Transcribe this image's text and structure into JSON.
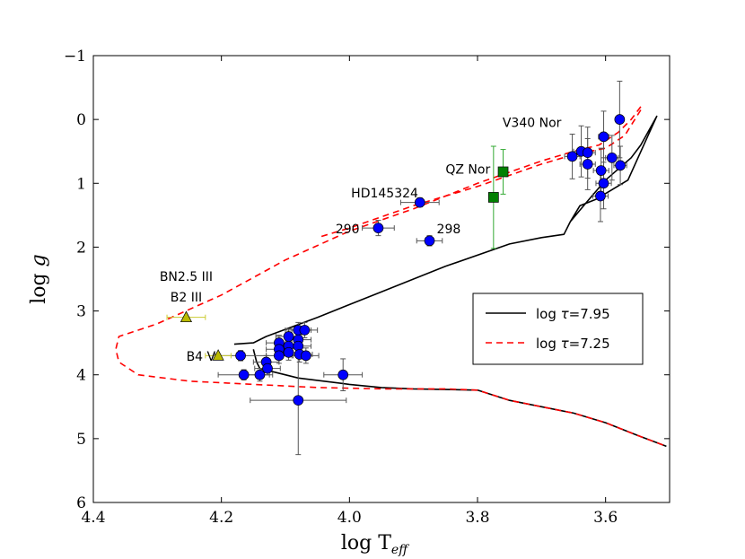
{
  "chart_data": {
    "type": "scatter",
    "xlabel_main": "log T",
    "xlabel_sub": "eff",
    "ylabel_main": "log",
    "ylabel_var": "g",
    "xlim": [
      4.4,
      3.5
    ],
    "ylim": [
      6,
      -1
    ],
    "x_ticks": [
      4.4,
      4.2,
      4.0,
      3.8,
      3.6
    ],
    "x_tick_labels": [
      "4.4",
      "4.2",
      "4.0",
      "3.8",
      "3.6"
    ],
    "y_ticks": [
      -1,
      0,
      1,
      2,
      3,
      4,
      5,
      6
    ],
    "y_tick_labels": [
      "−1",
      "0",
      "1",
      "2",
      "3",
      "4",
      "5",
      "6"
    ],
    "legend": {
      "position": "right",
      "entries": [
        {
          "label_pre": "log ",
          "label_sym": "τ",
          "label_post": "=7.95",
          "style": "solid",
          "color": "#000000"
        },
        {
          "label_pre": "log ",
          "label_sym": "τ",
          "label_post": "=7.25",
          "style": "dashed",
          "color": "#ff0000"
        }
      ]
    },
    "annotations": [
      {
        "text": "V340 Nor",
        "x": 3.715,
        "y": 0.12
      },
      {
        "text": "QZ Nor",
        "x": 3.815,
        "y": 0.85
      },
      {
        "text": "HD145324",
        "x": 3.945,
        "y": 1.22
      },
      {
        "text": "290",
        "x": 4.003,
        "y": 1.78
      },
      {
        "text": "298",
        "x": 3.845,
        "y": 1.78
      },
      {
        "text": "BN2.5 III",
        "x": 4.255,
        "y": 2.53
      },
      {
        "text": "B2 III",
        "x": 4.255,
        "y": 2.85
      },
      {
        "text": "B4 V",
        "x": 4.232,
        "y": 3.78
      }
    ],
    "series": [
      {
        "name": "blue circles",
        "marker": "circle",
        "color": "#0000ff",
        "errcolor": "#555555",
        "points": [
          {
            "x": 3.89,
            "y": 1.3,
            "xerr": 0.03,
            "yerr": 0.07
          },
          {
            "x": 3.955,
            "y": 1.7,
            "xerr": 0.025,
            "yerr": 0.12
          },
          {
            "x": 3.875,
            "y": 1.9,
            "xerr": 0.02,
            "yerr": 0.08
          },
          {
            "x": 3.578,
            "y": 0.0,
            "xerr": 0.006,
            "yerr": 0.6
          },
          {
            "x": 3.603,
            "y": 0.27,
            "xerr": 0.008,
            "yerr": 0.4
          },
          {
            "x": 3.638,
            "y": 0.5,
            "xerr": 0.012,
            "yerr": 0.4
          },
          {
            "x": 3.628,
            "y": 0.52,
            "xerr": 0.012,
            "yerr": 0.4
          },
          {
            "x": 3.652,
            "y": 0.58,
            "xerr": 0.012,
            "yerr": 0.35
          },
          {
            "x": 3.59,
            "y": 0.6,
            "xerr": 0.01,
            "yerr": 0.35
          },
          {
            "x": 3.628,
            "y": 0.7,
            "xerr": 0.012,
            "yerr": 0.4
          },
          {
            "x": 3.577,
            "y": 0.72,
            "xerr": 0.01,
            "yerr": 0.3
          },
          {
            "x": 3.607,
            "y": 0.8,
            "xerr": 0.012,
            "yerr": 0.35
          },
          {
            "x": 3.603,
            "y": 1.0,
            "xerr": 0.012,
            "yerr": 0.4
          },
          {
            "x": 3.608,
            "y": 1.2,
            "xerr": 0.012,
            "yerr": 0.4
          },
          {
            "x": 4.17,
            "y": 3.7,
            "xerr": 0.04,
            "yerr": 0.08
          },
          {
            "x": 4.165,
            "y": 4.0,
            "xerr": 0.04,
            "yerr": 0.08
          },
          {
            "x": 4.13,
            "y": 3.8,
            "xerr": 0.02,
            "yerr": 0.1
          },
          {
            "x": 4.128,
            "y": 3.9,
            "xerr": 0.02,
            "yerr": 0.1
          },
          {
            "x": 4.14,
            "y": 4.0,
            "xerr": 0.02,
            "yerr": 0.1
          },
          {
            "x": 4.11,
            "y": 3.5,
            "xerr": 0.02,
            "yerr": 0.12
          },
          {
            "x": 4.11,
            "y": 3.6,
            "xerr": 0.02,
            "yerr": 0.12
          },
          {
            "x": 4.11,
            "y": 3.7,
            "xerr": 0.02,
            "yerr": 0.12
          },
          {
            "x": 4.095,
            "y": 3.4,
            "xerr": 0.02,
            "yerr": 0.12
          },
          {
            "x": 4.095,
            "y": 3.55,
            "xerr": 0.02,
            "yerr": 0.12
          },
          {
            "x": 4.095,
            "y": 3.65,
            "xerr": 0.02,
            "yerr": 0.12
          },
          {
            "x": 4.08,
            "y": 3.3,
            "xerr": 0.02,
            "yerr": 0.12
          },
          {
            "x": 4.08,
            "y": 3.45,
            "xerr": 0.02,
            "yerr": 0.12
          },
          {
            "x": 4.08,
            "y": 3.55,
            "xerr": 0.02,
            "yerr": 0.12
          },
          {
            "x": 4.078,
            "y": 3.68,
            "xerr": 0.02,
            "yerr": 0.12
          },
          {
            "x": 4.07,
            "y": 3.3,
            "xerr": 0.02,
            "yerr": 0.12
          },
          {
            "x": 4.068,
            "y": 3.7,
            "xerr": 0.02,
            "yerr": 0.12
          },
          {
            "x": 4.01,
            "y": 4.0,
            "xerr": 0.03,
            "yerr": 0.25
          },
          {
            "x": 4.08,
            "y": 4.4,
            "xerr": 0.075,
            "yerr": 0.85
          }
        ]
      },
      {
        "name": "green squares",
        "marker": "square",
        "color": "#008000",
        "errcolor": "#33aa33",
        "points": [
          {
            "x": 3.76,
            "y": 0.82,
            "xerr": 0.0,
            "yerr": 0.35
          },
          {
            "x": 3.775,
            "y": 1.22,
            "xerr": 0.0,
            "yerr": 0.8
          }
        ]
      },
      {
        "name": "yellow triangles",
        "marker": "triangle",
        "color": "#bbbb00",
        "errcolor": "#cccc33",
        "points": [
          {
            "x": 4.255,
            "y": 3.1,
            "xerr": 0.03,
            "yerr": 0.0
          },
          {
            "x": 4.205,
            "y": 3.7,
            "xerr": 0.02,
            "yerr": 0.0
          }
        ]
      }
    ],
    "curves": [
      {
        "name": "log tau 7.95",
        "style": "solid",
        "color": "#000000",
        "points": [
          [
            4.18,
            3.52
          ],
          [
            4.15,
            3.5
          ],
          [
            4.13,
            3.4
          ],
          [
            4.05,
            3.1
          ],
          [
            3.95,
            2.7
          ],
          [
            3.85,
            2.3
          ],
          [
            3.75,
            1.95
          ],
          [
            3.7,
            1.85
          ],
          [
            3.665,
            1.8
          ],
          [
            3.655,
            1.6
          ],
          [
            3.63,
            1.3
          ],
          [
            3.6,
            0.95
          ],
          [
            3.56,
            0.6
          ],
          [
            3.545,
            0.4
          ],
          [
            3.52,
            -0.05
          ],
          [
            3.565,
            0.95
          ],
          [
            3.59,
            1.1
          ],
          [
            3.615,
            1.25
          ],
          [
            3.64,
            1.35
          ],
          [
            3.655,
            1.6
          ]
        ]
      },
      {
        "name": "log tau 7.95 lower",
        "style": "solid",
        "color": "#000000",
        "points": [
          [
            4.15,
            3.6
          ],
          [
            4.145,
            3.8
          ],
          [
            4.14,
            3.9
          ],
          [
            4.12,
            3.95
          ],
          [
            4.08,
            4.05
          ],
          [
            4.0,
            4.15
          ],
          [
            3.95,
            4.2
          ],
          [
            3.9,
            4.22
          ],
          [
            3.85,
            4.23
          ],
          [
            3.8,
            4.24
          ],
          [
            3.75,
            4.4
          ],
          [
            3.7,
            4.5
          ],
          [
            3.65,
            4.6
          ],
          [
            3.6,
            4.75
          ],
          [
            3.55,
            4.95
          ],
          [
            3.505,
            5.12
          ]
        ]
      },
      {
        "name": "log tau 7.25",
        "style": "dashed",
        "color": "#ff0000",
        "points": [
          [
            3.545,
            -0.2
          ],
          [
            3.56,
            0.0
          ],
          [
            3.58,
            0.2
          ],
          [
            3.61,
            0.4
          ],
          [
            3.65,
            0.5
          ],
          [
            3.7,
            0.65
          ],
          [
            3.8,
            1.0
          ],
          [
            3.9,
            1.4
          ],
          [
            4.0,
            1.75
          ],
          [
            4.1,
            2.2
          ],
          [
            4.2,
            2.75
          ],
          [
            4.3,
            3.2
          ],
          [
            4.345,
            3.35
          ],
          [
            4.36,
            3.4
          ],
          [
            4.365,
            3.6
          ],
          [
            4.36,
            3.8
          ],
          [
            4.33,
            4.0
          ],
          [
            4.25,
            4.1
          ],
          [
            4.15,
            4.15
          ],
          [
            4.05,
            4.2
          ],
          [
            3.95,
            4.22
          ],
          [
            3.85,
            4.22
          ],
          [
            3.8,
            4.24
          ],
          [
            3.75,
            4.4
          ],
          [
            3.7,
            4.5
          ],
          [
            3.65,
            4.6
          ],
          [
            3.6,
            4.75
          ],
          [
            3.55,
            4.95
          ],
          [
            3.505,
            5.12
          ]
        ]
      },
      {
        "name": "log tau 7.25 upper",
        "style": "dashed",
        "color": "#ff0000",
        "points": [
          [
            3.545,
            -0.15
          ],
          [
            3.57,
            0.25
          ],
          [
            3.6,
            0.45
          ],
          [
            3.65,
            0.55
          ],
          [
            3.7,
            0.7
          ],
          [
            3.8,
            1.05
          ],
          [
            3.9,
            1.35
          ],
          [
            4.0,
            1.7
          ],
          [
            4.05,
            1.85
          ]
        ]
      }
    ]
  }
}
